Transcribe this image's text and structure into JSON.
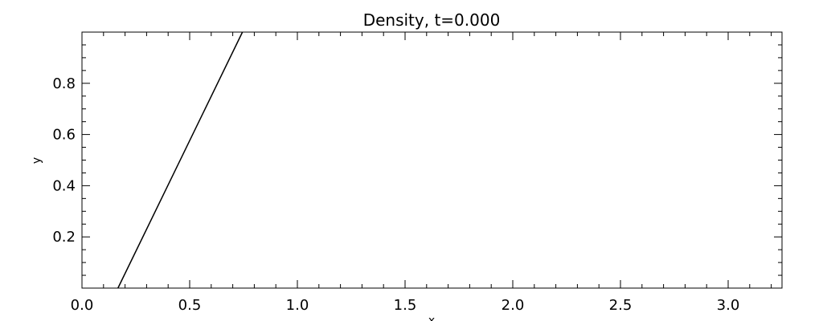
{
  "chart_data": {
    "type": "line",
    "title": "Density, t=0.000",
    "xlabel": "x",
    "ylabel": "y",
    "xlim": [
      0.0,
      3.25
    ],
    "ylim": [
      0.0,
      1.0
    ],
    "x_ticks": [
      0.0,
      0.5,
      1.0,
      1.5,
      2.0,
      2.5,
      3.0
    ],
    "x_tick_labels": [
      "0.0",
      "0.5",
      "1.0",
      "1.5",
      "2.0",
      "2.5",
      "3.0"
    ],
    "x_minor_step": 0.1,
    "y_ticks": [
      0.2,
      0.4,
      0.6,
      0.8
    ],
    "y_tick_labels": [
      "0.2",
      "0.4",
      "0.6",
      "0.8"
    ],
    "y_minor_step": 0.05,
    "grid": false,
    "series": [
      {
        "x": [
          0.167,
          0.745
        ],
        "y": [
          0.0,
          1.0
        ]
      }
    ],
    "line_color": "#000000"
  }
}
